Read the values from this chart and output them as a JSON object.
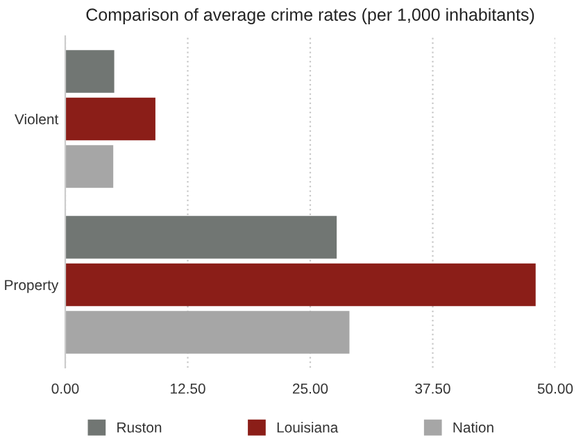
{
  "chart_data": {
    "type": "bar",
    "orientation": "horizontal",
    "title": "Comparison of average crime rates (per 1,000 inhabitants)",
    "categories": [
      "Violent",
      "Property"
    ],
    "series": [
      {
        "name": "Ruston",
        "color": "#717673",
        "values": [
          5.0,
          27.7
        ]
      },
      {
        "name": "Louisiana",
        "color": "#8b1e18",
        "values": [
          9.2,
          48.0
        ]
      },
      {
        "name": "Nation",
        "color": "#a6a6a6",
        "values": [
          4.9,
          29.0
        ]
      }
    ],
    "xlim": [
      0,
      50
    ],
    "xticks": [
      {
        "value": 0,
        "label": "0.00"
      },
      {
        "value": 12.5,
        "label": "12.50"
      },
      {
        "value": 25,
        "label": "25.00"
      },
      {
        "value": 37.5,
        "label": "37.50"
      },
      {
        "value": 50,
        "label": "50.00"
      }
    ],
    "grid": "x",
    "legend": "bottom"
  }
}
